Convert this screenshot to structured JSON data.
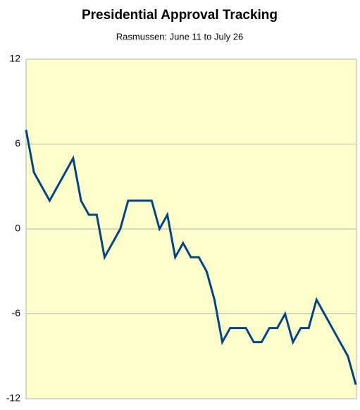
{
  "chart_data": {
    "type": "line",
    "title": "Presidential Approval Tracking",
    "subtitle": "Rasmussen: June 11 to July 26",
    "categories": [
      null,
      null,
      null,
      null,
      null,
      null,
      null,
      null,
      null,
      null,
      null,
      null,
      null,
      null,
      null,
      null,
      null,
      null,
      null,
      null,
      null,
      null,
      null,
      null,
      null,
      null,
      null,
      null,
      null,
      null,
      null,
      null,
      null,
      null,
      null,
      null,
      null,
      null,
      null,
      null,
      null,
      null,
      null
    ],
    "series": [
      {
        "color": "#004586",
        "values": [
          7,
          4,
          3,
          2,
          3,
          4,
          5,
          2,
          1,
          1,
          -2,
          -1,
          0,
          2,
          2,
          2,
          2,
          0,
          1,
          -2,
          -1,
          -2,
          -2,
          -3,
          -5,
          -8,
          -7,
          -7,
          -7,
          -8,
          -8,
          -7,
          -7,
          -6,
          -8,
          -7,
          -7,
          -5,
          -6,
          -7,
          -8,
          -9,
          -11
        ]
      }
    ],
    "ylim": [
      -12,
      12
    ],
    "yticks": [
      -12,
      -6,
      0,
      6,
      12
    ],
    "grid": true,
    "background": "#ffffcc"
  }
}
